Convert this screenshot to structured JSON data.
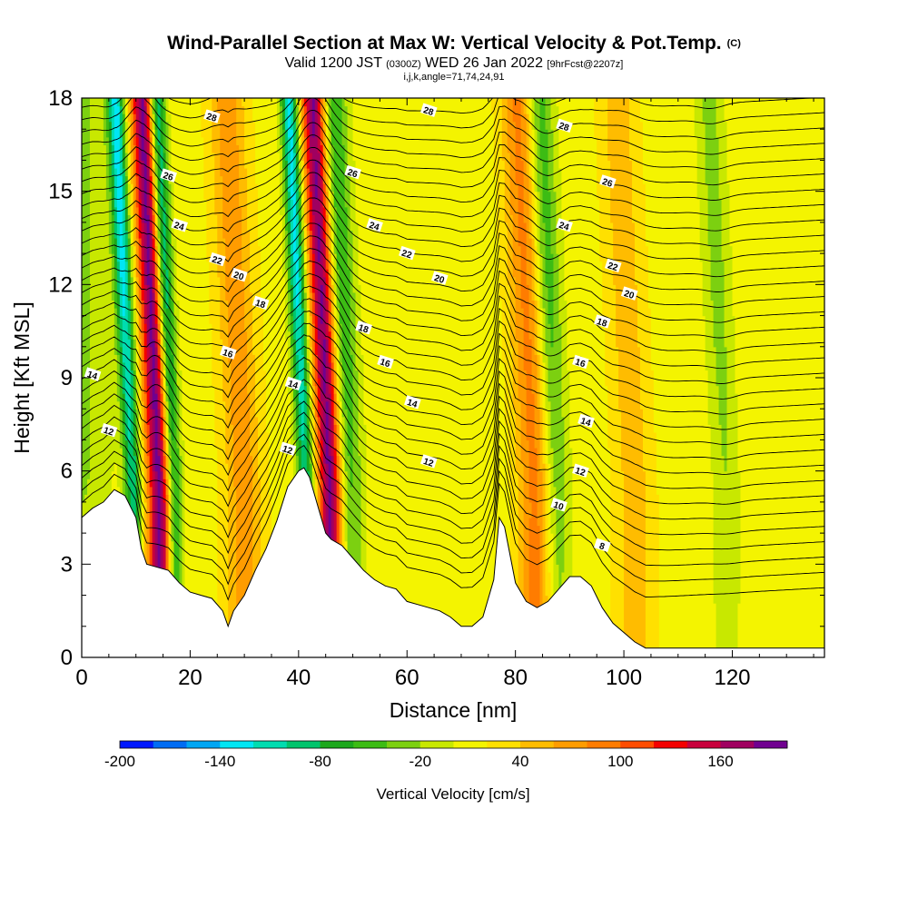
{
  "title": {
    "main": "Wind-Parallel Section at Max W: Vertical Velocity & Pot.Temp.",
    "copyright": "(C)",
    "valid_prefix": "Valid 1200 JST",
    "valid_utc": "(0300Z)",
    "valid_date": "WED 26 Jan 2022",
    "forecast": "[9hrFcst@2207z]",
    "indices": "i,j,k,angle=71,74,24,91"
  },
  "chart_data": {
    "type": "heatmap",
    "xlabel": "Distance [nm]",
    "ylabel": "Height [Kft MSL]",
    "xlim": [
      0,
      137
    ],
    "ylim": [
      0,
      18
    ],
    "x_ticks": [
      "0",
      "20",
      "40",
      "60",
      "80",
      "100",
      "120"
    ],
    "y_ticks": [
      "0",
      "3",
      "6",
      "9",
      "12",
      "15",
      "18"
    ],
    "colorbar": {
      "label": "Vertical Velocity [cm/s]",
      "tick_labels": [
        "-200",
        "-140",
        "-80",
        "-20",
        "40",
        "100",
        "160"
      ],
      "levels": [
        -200,
        -180,
        -160,
        -140,
        -120,
        -100,
        -80,
        -60,
        -40,
        -20,
        0,
        20,
        40,
        60,
        80,
        100,
        120,
        140,
        160,
        180,
        200
      ],
      "colors": [
        "#0018ff",
        "#006cf4",
        "#00a6f4",
        "#00e6f4",
        "#00dcb0",
        "#00c46c",
        "#1ca81c",
        "#3cbc14",
        "#7cd010",
        "#c8e800",
        "#f4f400",
        "#ffe000",
        "#ffbc00",
        "#ff9c00",
        "#ff7c00",
        "#ff4c00",
        "#f40000",
        "#c8003c",
        "#a00060",
        "#700090"
      ]
    },
    "updraft_bands": [
      {
        "center_x": 14.5,
        "peak_w": 180
      },
      {
        "center_x": 46.0,
        "peak_w": 180
      },
      {
        "center_x": 84.0,
        "peak_w": 80
      },
      {
        "center_x": 30.0,
        "peak_w": 60
      },
      {
        "center_x": 102.0,
        "peak_w": 40
      }
    ],
    "downdraft_bands": [
      {
        "center_x": 9.5,
        "peak_w": -140
      },
      {
        "center_x": 17.0,
        "peak_w": -140
      },
      {
        "center_x": 41.5,
        "peak_w": -140
      },
      {
        "center_x": 49.5,
        "peak_w": -80
      },
      {
        "center_x": 87.5,
        "peak_w": -80
      },
      {
        "center_x": 119.0,
        "peak_w": -40
      }
    ],
    "terrain_kft": {
      "x": [
        0,
        2,
        4,
        6,
        8,
        10,
        11,
        12,
        14,
        16,
        18,
        20,
        22,
        24,
        26,
        27,
        28,
        30,
        32,
        34,
        36,
        38,
        40,
        41,
        42,
        44,
        45,
        46,
        48,
        50,
        52,
        54,
        56,
        58,
        60,
        62,
        64,
        66,
        68,
        70,
        72,
        74,
        76,
        77,
        78,
        80,
        82,
        84,
        86,
        88,
        90,
        92,
        94,
        96,
        98,
        100,
        102,
        104,
        110,
        120,
        130,
        137
      ],
      "height": [
        4.5,
        4.8,
        5.0,
        5.4,
        5.2,
        4.5,
        3.5,
        3.0,
        2.9,
        2.8,
        2.4,
        2.1,
        2.0,
        1.9,
        1.5,
        1.0,
        1.5,
        2.0,
        2.8,
        3.5,
        4.4,
        5.5,
        6.0,
        6.1,
        5.8,
        4.6,
        4.0,
        3.8,
        3.6,
        3.2,
        2.8,
        2.5,
        2.3,
        2.2,
        1.8,
        1.7,
        1.6,
        1.5,
        1.3,
        1.0,
        1.0,
        1.3,
        2.5,
        4.5,
        4.2,
        2.4,
        1.8,
        1.6,
        1.8,
        2.2,
        2.6,
        2.6,
        2.3,
        1.6,
        1.1,
        0.8,
        0.5,
        0.3,
        0.3,
        0.3,
        0.3,
        0.3
      ]
    },
    "theta_contours": {
      "levels": [
        8,
        10,
        12,
        14,
        16,
        18,
        20,
        22,
        24,
        26,
        28
      ],
      "labels": [
        {
          "text": "28",
          "x": 24,
          "y": 17.4
        },
        {
          "text": "26",
          "x": 16,
          "y": 15.5
        },
        {
          "text": "24",
          "x": 18,
          "y": 13.9
        },
        {
          "text": "22",
          "x": 25,
          "y": 12.8
        },
        {
          "text": "20",
          "x": 29,
          "y": 12.3
        },
        {
          "text": "18",
          "x": 33,
          "y": 11.4
        },
        {
          "text": "16",
          "x": 27,
          "y": 9.8
        },
        {
          "text": "14",
          "x": 39,
          "y": 8.8
        },
        {
          "text": "12",
          "x": 38,
          "y": 6.7
        },
        {
          "text": "14",
          "x": 2,
          "y": 9.1
        },
        {
          "text": "12",
          "x": 5,
          "y": 7.3
        },
        {
          "text": "28",
          "x": 64,
          "y": 17.6
        },
        {
          "text": "26",
          "x": 50,
          "y": 15.6
        },
        {
          "text": "24",
          "x": 54,
          "y": 13.9
        },
        {
          "text": "22",
          "x": 60,
          "y": 13.0
        },
        {
          "text": "20",
          "x": 66,
          "y": 12.2
        },
        {
          "text": "18",
          "x": 52,
          "y": 10.6
        },
        {
          "text": "16",
          "x": 56,
          "y": 9.5
        },
        {
          "text": "14",
          "x": 61,
          "y": 8.2
        },
        {
          "text": "12",
          "x": 64,
          "y": 6.3
        },
        {
          "text": "28",
          "x": 89,
          "y": 17.1
        },
        {
          "text": "26",
          "x": 97,
          "y": 15.3
        },
        {
          "text": "24",
          "x": 89,
          "y": 13.9
        },
        {
          "text": "22",
          "x": 98,
          "y": 12.6
        },
        {
          "text": "20",
          "x": 101,
          "y": 11.7
        },
        {
          "text": "18",
          "x": 96,
          "y": 10.8
        },
        {
          "text": "16",
          "x": 92,
          "y": 9.5
        },
        {
          "text": "14",
          "x": 93,
          "y": 7.6
        },
        {
          "text": "12",
          "x": 92,
          "y": 6.0
        },
        {
          "text": "10",
          "x": 88,
          "y": 4.9
        },
        {
          "text": "8",
          "x": 96,
          "y": 3.6
        }
      ]
    }
  }
}
